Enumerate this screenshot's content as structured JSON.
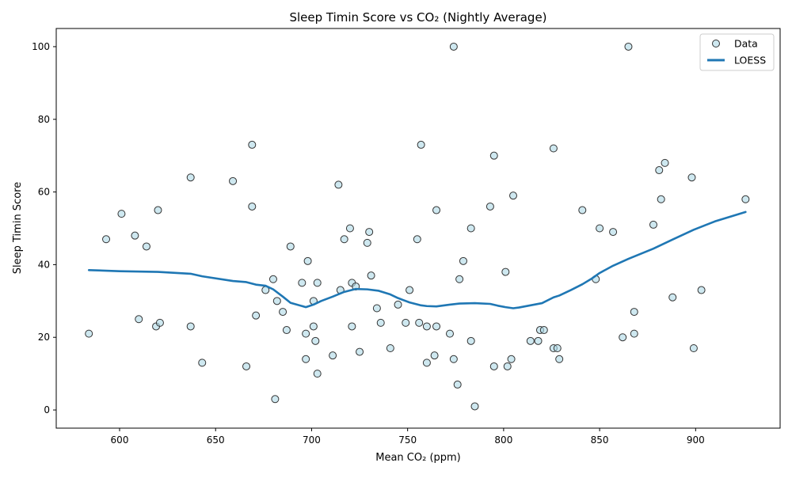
{
  "chart_data": {
    "type": "scatter",
    "title": "Sleep Timin Score vs CO₂ (Nightly Average)",
    "xlabel": "Mean CO₂ (ppm)",
    "ylabel": "Sleep Timin Score",
    "xlim": [
      567,
      944
    ],
    "ylim": [
      -5,
      105
    ],
    "xticks": [
      600,
      650,
      700,
      750,
      800,
      850,
      900
    ],
    "yticks": [
      0,
      20,
      40,
      60,
      80,
      100
    ],
    "grid": false,
    "legend_position": "top-right",
    "legend": [
      {
        "label": "Data",
        "kind": "marker"
      },
      {
        "label": "LOESS",
        "kind": "line"
      }
    ],
    "colors": {
      "marker_fill": "#add8e6",
      "marker_edge": "#333333",
      "loess_line": "#1f77b4"
    },
    "series": [
      {
        "name": "Data",
        "kind": "scatter",
        "points": [
          [
            584,
            21
          ],
          [
            593,
            47
          ],
          [
            601,
            54
          ],
          [
            608,
            48
          ],
          [
            610,
            25
          ],
          [
            614,
            45
          ],
          [
            619,
            23
          ],
          [
            620,
            55
          ],
          [
            621,
            24
          ],
          [
            637,
            23
          ],
          [
            637,
            64
          ],
          [
            643,
            13
          ],
          [
            659,
            63
          ],
          [
            666,
            12
          ],
          [
            669,
            73
          ],
          [
            669,
            56
          ],
          [
            671,
            26
          ],
          [
            676,
            33
          ],
          [
            680,
            36
          ],
          [
            681,
            3
          ],
          [
            682,
            30
          ],
          [
            685,
            27
          ],
          [
            687,
            22
          ],
          [
            689,
            45
          ],
          [
            695,
            35
          ],
          [
            697,
            14
          ],
          [
            697,
            21
          ],
          [
            698,
            41
          ],
          [
            701,
            30
          ],
          [
            701,
            23
          ],
          [
            702,
            19
          ],
          [
            703,
            35
          ],
          [
            703,
            10
          ],
          [
            711,
            15
          ],
          [
            714,
            62
          ],
          [
            715,
            33
          ],
          [
            717,
            47
          ],
          [
            720,
            50
          ],
          [
            721,
            35
          ],
          [
            721,
            23
          ],
          [
            723,
            34
          ],
          [
            725,
            16
          ],
          [
            729,
            46
          ],
          [
            730,
            49
          ],
          [
            731,
            37
          ],
          [
            734,
            28
          ],
          [
            736,
            24
          ],
          [
            741,
            17
          ],
          [
            745,
            29
          ],
          [
            749,
            24
          ],
          [
            751,
            33
          ],
          [
            755,
            47
          ],
          [
            756,
            24
          ],
          [
            757,
            73
          ],
          [
            760,
            13
          ],
          [
            760,
            23
          ],
          [
            764,
            15
          ],
          [
            765,
            23
          ],
          [
            765,
            55
          ],
          [
            772,
            21
          ],
          [
            774,
            14
          ],
          [
            774,
            100
          ],
          [
            776,
            7
          ],
          [
            777,
            36
          ],
          [
            779,
            41
          ],
          [
            783,
            19
          ],
          [
            783,
            50
          ],
          [
            785,
            1
          ],
          [
            793,
            56
          ],
          [
            795,
            12
          ],
          [
            795,
            70
          ],
          [
            801,
            38
          ],
          [
            802,
            12
          ],
          [
            804,
            14
          ],
          [
            805,
            59
          ],
          [
            814,
            19
          ],
          [
            818,
            19
          ],
          [
            819,
            22
          ],
          [
            821,
            22
          ],
          [
            826,
            72
          ],
          [
            826,
            17
          ],
          [
            828,
            17
          ],
          [
            829,
            14
          ],
          [
            841,
            55
          ],
          [
            848,
            36
          ],
          [
            850,
            50
          ],
          [
            857,
            49
          ],
          [
            862,
            20
          ],
          [
            865,
            100
          ],
          [
            868,
            27
          ],
          [
            868,
            21
          ],
          [
            878,
            51
          ],
          [
            881,
            66
          ],
          [
            882,
            58
          ],
          [
            884,
            68
          ],
          [
            888,
            31
          ],
          [
            898,
            64
          ],
          [
            899,
            17
          ],
          [
            903,
            33
          ],
          [
            926,
            58
          ]
        ]
      },
      {
        "name": "LOESS",
        "kind": "line",
        "points": [
          [
            584,
            38.5
          ],
          [
            600,
            38.2
          ],
          [
            620,
            38.0
          ],
          [
            637,
            37.5
          ],
          [
            643,
            36.8
          ],
          [
            659,
            35.5
          ],
          [
            666,
            35.2
          ],
          [
            671,
            34.5
          ],
          [
            676,
            34.2
          ],
          [
            680,
            33.2
          ],
          [
            685,
            31.2
          ],
          [
            689,
            29.5
          ],
          [
            697,
            28.3
          ],
          [
            701,
            29.0
          ],
          [
            705,
            30.0
          ],
          [
            711,
            31.2
          ],
          [
            717,
            32.5
          ],
          [
            723,
            33.3
          ],
          [
            729,
            33.2
          ],
          [
            735,
            32.8
          ],
          [
            741,
            31.8
          ],
          [
            745,
            30.8
          ],
          [
            751,
            29.6
          ],
          [
            757,
            28.8
          ],
          [
            760,
            28.6
          ],
          [
            765,
            28.5
          ],
          [
            772,
            29.0
          ],
          [
            777,
            29.3
          ],
          [
            785,
            29.4
          ],
          [
            793,
            29.2
          ],
          [
            797,
            28.7
          ],
          [
            801,
            28.3
          ],
          [
            805,
            28.0
          ],
          [
            808,
            28.2
          ],
          [
            814,
            28.8
          ],
          [
            820,
            29.4
          ],
          [
            826,
            31.0
          ],
          [
            829,
            31.5
          ],
          [
            835,
            33.0
          ],
          [
            841,
            34.6
          ],
          [
            846,
            36.2
          ],
          [
            850,
            37.7
          ],
          [
            857,
            39.7
          ],
          [
            865,
            41.6
          ],
          [
            878,
            44.4
          ],
          [
            888,
            46.9
          ],
          [
            899,
            49.6
          ],
          [
            910,
            51.9
          ],
          [
            926,
            54.5
          ]
        ]
      }
    ]
  }
}
